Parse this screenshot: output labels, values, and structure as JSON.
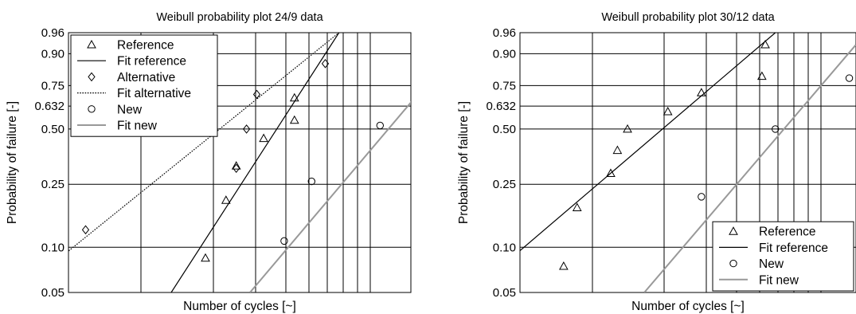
{
  "chart_data": [
    {
      "type": "scatter",
      "title": "Weibull probability plot 24/9 data",
      "xlabel": "Number of cycles [~]",
      "ylabel": "Probability of failure [-]",
      "xscale": "log",
      "yscale": "weibull",
      "x_tick_labels": [],
      "y_ticks": [
        0.05,
        0.1,
        0.25,
        0.5,
        0.632,
        0.75,
        0.9,
        0.96
      ],
      "y_tick_labels": [
        "0.05",
        "0.10",
        "0.25",
        "0.50",
        "0.632",
        "0.75",
        "0.90",
        "0.96"
      ],
      "ylim": [
        0.05,
        0.96
      ],
      "grid": true,
      "legend_position": "top-left",
      "series": [
        {
          "name": "Reference",
          "marker": "triangle",
          "points": [
            [
              0.4,
              0.085
            ],
            [
              0.46,
              0.2
            ],
            [
              0.49,
              0.32
            ],
            [
              0.57,
              0.45
            ],
            [
              0.66,
              0.68
            ],
            [
              0.66,
              0.55
            ]
          ]
        },
        {
          "name": "Fit reference",
          "kind": "line",
          "style": "solid",
          "color": "#000000",
          "endpoints": [
            [
              0.3,
              0.05
            ],
            [
              0.79,
              0.96
            ]
          ]
        },
        {
          "name": "Alternative",
          "marker": "diamond",
          "points": [
            [
              0.05,
              0.13
            ],
            [
              0.49,
              0.31
            ],
            [
              0.52,
              0.5
            ],
            [
              0.55,
              0.7
            ],
            [
              0.75,
              0.86
            ]
          ]
        },
        {
          "name": "Fit alternative",
          "kind": "line",
          "style": "dotted",
          "color": "#000000",
          "endpoints": [
            [
              -0.15,
              0.05
            ],
            [
              0.79,
              0.96
            ]
          ]
        },
        {
          "name": "New",
          "marker": "circle",
          "points": [
            [
              0.63,
              0.11
            ],
            [
              0.71,
              0.26
            ],
            [
              0.91,
              0.52
            ]
          ]
        },
        {
          "name": "Fit new",
          "kind": "line",
          "style": "solid",
          "color": "#999999",
          "endpoints": [
            [
              0.53,
              0.05
            ],
            [
              1.08,
              0.83
            ]
          ]
        }
      ]
    },
    {
      "type": "scatter",
      "title": "Weibull probability plot 30/12 data",
      "xlabel": "Number of cycles [~]",
      "ylabel": "Probability of failure [-]",
      "xscale": "log",
      "yscale": "weibull",
      "x_tick_labels": [],
      "y_ticks": [
        0.05,
        0.1,
        0.25,
        0.5,
        0.632,
        0.75,
        0.9,
        0.96
      ],
      "y_tick_labels": [
        "0.05",
        "0.10",
        "0.25",
        "0.50",
        "0.632",
        "0.75",
        "0.90",
        "0.96"
      ],
      "ylim": [
        0.05,
        0.96
      ],
      "grid": true,
      "legend_position": "bottom-right",
      "series": [
        {
          "name": "Reference",
          "marker": "triangle",
          "points": [
            [
              0.13,
              0.075
            ],
            [
              0.17,
              0.18
            ],
            [
              0.27,
              0.29
            ],
            [
              0.29,
              0.39
            ],
            [
              0.32,
              0.5
            ],
            [
              0.44,
              0.6
            ],
            [
              0.54,
              0.71
            ],
            [
              0.72,
              0.8
            ],
            [
              0.73,
              0.93
            ]
          ]
        },
        {
          "name": "Fit reference",
          "kind": "line",
          "style": "solid",
          "color": "#000000",
          "endpoints": [
            [
              0.0,
              0.095
            ],
            [
              0.76,
              0.96
            ]
          ]
        },
        {
          "name": "New",
          "marker": "circle",
          "points": [
            [
              0.54,
              0.21
            ],
            [
              0.76,
              0.5
            ],
            [
              0.98,
              0.79
            ]
          ]
        },
        {
          "name": "Fit new",
          "kind": "line",
          "style": "solid",
          "color": "#999999",
          "endpoints": [
            [
              0.37,
              0.05
            ],
            [
              1.0,
              0.93
            ]
          ]
        }
      ]
    }
  ]
}
